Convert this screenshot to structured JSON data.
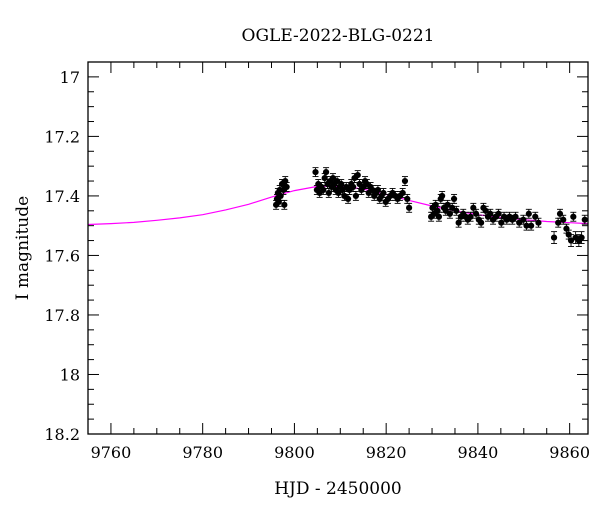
{
  "chart_data": {
    "type": "scatter",
    "title": "OGLE-2022-BLG-0221",
    "xlabel": "HJD - 2450000",
    "ylabel": "I magnitude",
    "xlim": [
      9755,
      9864
    ],
    "ylim": [
      17.2,
      16.95
    ],
    "y_inverted": true,
    "x_ticks": [
      9760,
      9780,
      9800,
      9820,
      9840,
      9860
    ],
    "x_tick_labels": [
      "9760",
      "9780",
      "9800",
      "9820",
      "9840",
      "9860"
    ],
    "y_ticks": [
      17,
      17.2,
      17.4,
      17.6,
      17.8,
      18,
      18.2
    ],
    "y_tick_labels": [
      "17",
      "17.2",
      "17.4",
      "17.6",
      "17.8",
      "18",
      "18.2"
    ],
    "grid": false,
    "legend": "none",
    "series": [
      {
        "kind": "points",
        "color": "#000000",
        "points": [
          [
            9796.0,
            17.43,
            0.015
          ],
          [
            9796.2,
            17.41,
            0.015
          ],
          [
            9796.4,
            17.39,
            0.015
          ],
          [
            9796.6,
            17.42,
            0.015
          ],
          [
            9796.8,
            17.38,
            0.015
          ],
          [
            9797.0,
            17.4,
            0.015
          ],
          [
            9797.3,
            17.36,
            0.015
          ],
          [
            9797.6,
            17.38,
            0.015
          ],
          [
            9797.8,
            17.43,
            0.015
          ],
          [
            9798.0,
            17.35,
            0.015
          ],
          [
            9798.3,
            17.37,
            0.015
          ],
          [
            9804.6,
            17.32,
            0.015
          ],
          [
            9804.9,
            17.38,
            0.015
          ],
          [
            9805.2,
            17.36,
            0.015
          ],
          [
            9805.5,
            17.39,
            0.015
          ],
          [
            9805.9,
            17.37,
            0.015
          ],
          [
            9806.3,
            17.38,
            0.015
          ],
          [
            9806.6,
            17.34,
            0.015
          ],
          [
            9806.9,
            17.32,
            0.015
          ],
          [
            9807.2,
            17.36,
            0.015
          ],
          [
            9807.5,
            17.39,
            0.015
          ],
          [
            9807.8,
            17.35,
            0.015
          ],
          [
            9808.1,
            17.37,
            0.015
          ],
          [
            9808.4,
            17.34,
            0.015
          ],
          [
            9808.7,
            17.36,
            0.015
          ],
          [
            9809.0,
            17.38,
            0.015
          ],
          [
            9809.3,
            17.35,
            0.015
          ],
          [
            9809.6,
            17.39,
            0.015
          ],
          [
            9809.9,
            17.37,
            0.015
          ],
          [
            9810.2,
            17.36,
            0.015
          ],
          [
            9810.5,
            17.38,
            0.015
          ],
          [
            9810.9,
            17.4,
            0.015
          ],
          [
            9811.3,
            17.37,
            0.015
          ],
          [
            9811.7,
            17.41,
            0.015
          ],
          [
            9812.0,
            17.38,
            0.015
          ],
          [
            9812.4,
            17.36,
            0.015
          ],
          [
            9812.8,
            17.37,
            0.015
          ],
          [
            9813.1,
            17.34,
            0.015
          ],
          [
            9813.4,
            17.4,
            0.015
          ],
          [
            9813.8,
            17.33,
            0.015
          ],
          [
            9814.2,
            17.36,
            0.015
          ],
          [
            9814.6,
            17.38,
            0.015
          ],
          [
            9815.0,
            17.37,
            0.015
          ],
          [
            9815.4,
            17.35,
            0.015
          ],
          [
            9815.8,
            17.36,
            0.015
          ],
          [
            9816.2,
            17.39,
            0.015
          ],
          [
            9816.6,
            17.37,
            0.015
          ],
          [
            9817.0,
            17.38,
            0.015
          ],
          [
            9817.4,
            17.4,
            0.015
          ],
          [
            9817.8,
            17.39,
            0.015
          ],
          [
            9818.2,
            17.38,
            0.015
          ],
          [
            9818.6,
            17.41,
            0.015
          ],
          [
            9819.0,
            17.4,
            0.015
          ],
          [
            9819.4,
            17.39,
            0.015
          ],
          [
            9819.9,
            17.42,
            0.015
          ],
          [
            9820.4,
            17.41,
            0.015
          ],
          [
            9820.9,
            17.4,
            0.015
          ],
          [
            9821.4,
            17.39,
            0.015
          ],
          [
            9822.0,
            17.4,
            0.015
          ],
          [
            9822.5,
            17.41,
            0.015
          ],
          [
            9823.0,
            17.4,
            0.015
          ],
          [
            9823.6,
            17.39,
            0.015
          ],
          [
            9824.1,
            17.35,
            0.015
          ],
          [
            9824.6,
            17.41,
            0.015
          ],
          [
            9825.0,
            17.44,
            0.015
          ],
          [
            9829.8,
            17.47,
            0.015
          ],
          [
            9830.1,
            17.44,
            0.015
          ],
          [
            9830.5,
            17.46,
            0.015
          ],
          [
            9830.8,
            17.43,
            0.015
          ],
          [
            9831.2,
            17.45,
            0.015
          ],
          [
            9831.5,
            17.47,
            0.015
          ],
          [
            9831.9,
            17.41,
            0.015
          ],
          [
            9832.2,
            17.4,
            0.015
          ],
          [
            9832.6,
            17.44,
            0.015
          ],
          [
            9833.0,
            17.45,
            0.015
          ],
          [
            9833.4,
            17.43,
            0.015
          ],
          [
            9833.9,
            17.46,
            0.015
          ],
          [
            9834.4,
            17.44,
            0.015
          ],
          [
            9834.8,
            17.41,
            0.015
          ],
          [
            9835.3,
            17.45,
            0.015
          ],
          [
            9835.8,
            17.49,
            0.015
          ],
          [
            9836.3,
            17.47,
            0.015
          ],
          [
            9836.8,
            17.46,
            0.015
          ],
          [
            9837.3,
            17.47,
            0.015
          ],
          [
            9837.8,
            17.48,
            0.015
          ],
          [
            9838.4,
            17.47,
            0.015
          ],
          [
            9839.0,
            17.44,
            0.015
          ],
          [
            9839.6,
            17.46,
            0.015
          ],
          [
            9840.2,
            17.48,
            0.015
          ],
          [
            9840.7,
            17.49,
            0.015
          ],
          [
            9841.2,
            17.44,
            0.015
          ],
          [
            9841.7,
            17.45,
            0.015
          ],
          [
            9842.2,
            17.47,
            0.015
          ],
          [
            9842.7,
            17.46,
            0.015
          ],
          [
            9843.3,
            17.48,
            0.015
          ],
          [
            9843.9,
            17.47,
            0.015
          ],
          [
            9844.5,
            17.46,
            0.015
          ],
          [
            9845.1,
            17.49,
            0.015
          ],
          [
            9845.7,
            17.47,
            0.015
          ],
          [
            9846.3,
            17.48,
            0.015
          ],
          [
            9846.9,
            17.47,
            0.015
          ],
          [
            9847.5,
            17.48,
            0.015
          ],
          [
            9848.2,
            17.47,
            0.015
          ],
          [
            9849.0,
            17.49,
            0.015
          ],
          [
            9849.9,
            17.48,
            0.015
          ],
          [
            9850.6,
            17.5,
            0.015
          ],
          [
            9851.1,
            17.46,
            0.015
          ],
          [
            9851.6,
            17.5,
            0.015
          ],
          [
            9852.5,
            17.47,
            0.015
          ],
          [
            9853.2,
            17.49,
            0.015
          ],
          [
            9856.6,
            17.54,
            0.02
          ],
          [
            9857.5,
            17.49,
            0.015
          ],
          [
            9857.9,
            17.46,
            0.015
          ],
          [
            9858.6,
            17.48,
            0.015
          ],
          [
            9859.3,
            17.51,
            0.015
          ],
          [
            9859.8,
            17.53,
            0.015
          ],
          [
            9860.3,
            17.55,
            0.02
          ],
          [
            9860.8,
            17.47,
            0.015
          ],
          [
            9861.3,
            17.54,
            0.02
          ],
          [
            9862.0,
            17.55,
            0.02
          ],
          [
            9862.6,
            17.54,
            0.02
          ],
          [
            9863.3,
            17.48,
            0.015
          ]
        ]
      },
      {
        "kind": "model-curve",
        "color": "#ff00ff",
        "points": [
          [
            9755,
            17.496
          ],
          [
            9760,
            17.493
          ],
          [
            9765,
            17.489
          ],
          [
            9770,
            17.482
          ],
          [
            9775,
            17.474
          ],
          [
            9780,
            17.463
          ],
          [
            9785,
            17.447
          ],
          [
            9790,
            17.428
          ],
          [
            9795,
            17.404
          ],
          [
            9800,
            17.382
          ],
          [
            9805,
            17.368
          ],
          [
            9810,
            17.367
          ],
          [
            9815,
            17.377
          ],
          [
            9820,
            17.395
          ],
          [
            9825,
            17.415
          ],
          [
            9830,
            17.434
          ],
          [
            9835,
            17.45
          ],
          [
            9840,
            17.463
          ],
          [
            9845,
            17.473
          ],
          [
            9850,
            17.48
          ],
          [
            9855,
            17.486
          ],
          [
            9860,
            17.49
          ],
          [
            9864,
            17.493
          ]
        ]
      }
    ]
  }
}
